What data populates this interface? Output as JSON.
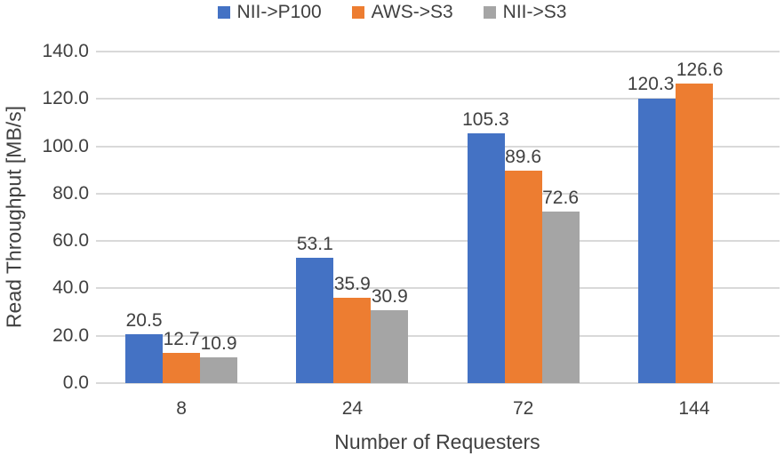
{
  "chart_data": {
    "type": "bar",
    "title": "",
    "categories": [
      "8",
      "24",
      "72",
      "144"
    ],
    "series": [
      {
        "name": "NII->P100",
        "color": "#4472C4",
        "values": [
          20.5,
          53.1,
          105.3,
          120.3
        ]
      },
      {
        "name": "AWS->S3",
        "color": "#ED7D31",
        "values": [
          12.7,
          35.9,
          89.6,
          126.6
        ]
      },
      {
        "name": "NII->S3",
        "color": "#A5A5A5",
        "values": [
          10.9,
          30.9,
          72.6,
          null
        ]
      }
    ],
    "data_labels": [
      "20.5",
      "12.7",
      "10.9",
      "53.1",
      "35.9",
      "30.9",
      "105.3",
      "89.6",
      "72.6",
      "120.3",
      "126.6"
    ],
    "xlabel": "Number of Requesters",
    "ylabel": "Read Throughput [MB/s]",
    "ylim": [
      0,
      140
    ],
    "ytick_step": 20,
    "ytick_labels": [
      "0.0",
      "20.0",
      "40.0",
      "60.0",
      "80.0",
      "100.0",
      "120.0",
      "140.0"
    ],
    "grid": true,
    "legend_position": "top",
    "colors": {
      "gridline": "#D9D9D9",
      "axis_line": "#D9D9D9",
      "text": "#404040",
      "background": "#FFFFFF"
    }
  }
}
